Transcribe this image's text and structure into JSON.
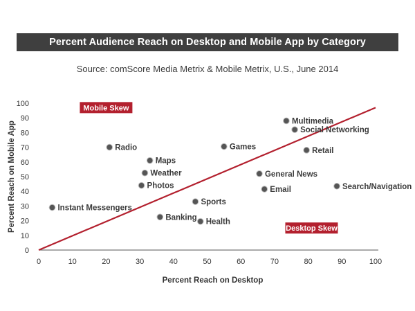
{
  "header": {
    "title": "Percent Audience Reach on Desktop and Mobile App by Category",
    "subtitle": "Source: comScore Media Metrix & Mobile Metrix, U.S., June 2014"
  },
  "colors": {
    "title_bar": "#3f3f3f",
    "diagonal_line": "#b3202e",
    "skew_box": "#b3202e",
    "point": "#555555"
  },
  "chart_data": {
    "type": "scatter",
    "xlabel": "Percent Reach on Desktop",
    "ylabel": "Percent Reach on Mobile App",
    "xlim": [
      0,
      100
    ],
    "ylim": [
      0,
      100
    ],
    "xticks": [
      0,
      10,
      20,
      30,
      40,
      50,
      60,
      70,
      80,
      90,
      100
    ],
    "yticks": [
      0,
      10,
      20,
      30,
      40,
      50,
      60,
      70,
      80,
      90,
      100
    ],
    "grid": false,
    "reference_line": {
      "from": [
        0,
        0
      ],
      "to": [
        100,
        97
      ]
    },
    "annotations": [
      {
        "text": "Mobile Skew",
        "x": 20,
        "y": 97
      },
      {
        "text": "Desktop Skew",
        "x": 81,
        "y": 15
      }
    ],
    "points": [
      {
        "label": "Instant Messengers",
        "x": 4,
        "y": 29
      },
      {
        "label": "Radio",
        "x": 21,
        "y": 70
      },
      {
        "label": "Maps",
        "x": 33,
        "y": 61
      },
      {
        "label": "Weather",
        "x": 31.5,
        "y": 52.5
      },
      {
        "label": "Photos",
        "x": 30.5,
        "y": 44
      },
      {
        "label": "Banking",
        "x": 36,
        "y": 22.5
      },
      {
        "label": "Sports",
        "x": 46.5,
        "y": 33
      },
      {
        "label": "Health",
        "x": 48,
        "y": 19.5
      },
      {
        "label": "Games",
        "x": 55,
        "y": 70.5
      },
      {
        "label": "General News",
        "x": 65.5,
        "y": 52
      },
      {
        "label": "Email",
        "x": 67,
        "y": 41.5
      },
      {
        "label": "Multimedia",
        "x": 73.5,
        "y": 88
      },
      {
        "label": "Social Networking",
        "x": 76,
        "y": 82
      },
      {
        "label": "Retail",
        "x": 79.5,
        "y": 68
      },
      {
        "label": "Search/Navigation",
        "x": 88.5,
        "y": 43.5
      }
    ]
  }
}
